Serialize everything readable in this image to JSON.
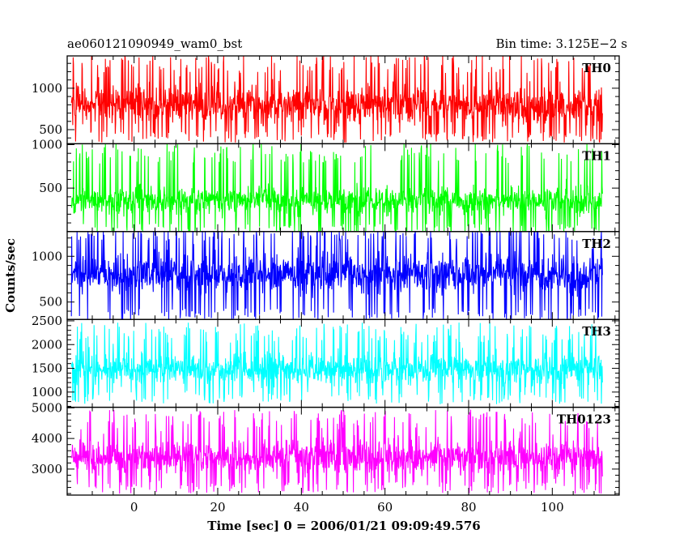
{
  "header": {
    "title": "ae060121090949_wam0_bst",
    "bin_time": "Bin time: 3.125E−2 s"
  },
  "chart_data": {
    "type": "line",
    "xlabel": "Time [sec] 0 = 2006/01/21 09:09:49.576",
    "ylabel": "Counts/sec",
    "xlim": [
      -16,
      116
    ],
    "x_range": [
      -15,
      112
    ],
    "x_ticks": [
      0,
      20,
      40,
      60,
      80,
      100
    ],
    "x_tick_labels": [
      "0",
      "20",
      "40",
      "60",
      "80",
      "100"
    ],
    "grid": false,
    "panels": [
      {
        "name": "TH0",
        "color": "#ff0000",
        "ylim": [
          330,
          1390
        ],
        "y_ticks": [
          500,
          1000
        ],
        "y_tick_labels": [
          "500",
          "1000"
        ],
        "mean": 800,
        "lower": 480,
        "upper": 1180,
        "spread": 115,
        "tail": 230
      },
      {
        "name": "TH1",
        "color": "#00ff00",
        "ylim": [
          0,
          1010
        ],
        "y_ticks": [
          500,
          1000
        ],
        "y_tick_labels": [
          "500",
          "1000"
        ],
        "mean": 360,
        "lower": 90,
        "upper": 780,
        "spread": 75,
        "tail": 240
      },
      {
        "name": "TH2",
        "color": "#0000ff",
        "ylim": [
          310,
          1270
        ],
        "y_ticks": [
          500,
          1000
        ],
        "y_tick_labels": [
          "500",
          "1000"
        ],
        "mean": 800,
        "lower": 430,
        "upper": 1170,
        "spread": 105,
        "tail": 230
      },
      {
        "name": "TH3",
        "color": "#00ffff",
        "ylim": [
          680,
          2530
        ],
        "y_ticks": [
          1000,
          1500,
          2000,
          2500
        ],
        "y_tick_labels": [
          "1000",
          "1500",
          "2000",
          "2500"
        ],
        "mean": 1480,
        "lower": 1000,
        "upper": 2040,
        "spread": 160,
        "tail": 430
      },
      {
        "name": "TH0123",
        "color": "#ff00ff",
        "ylim": [
          2150,
          5020
        ],
        "y_ticks": [
          3000,
          4000,
          5000
        ],
        "y_tick_labels": [
          "3000",
          "4000",
          "5000"
        ],
        "mean": 3380,
        "lower": 2580,
        "upper": 4300,
        "spread": 280,
        "tail": 640
      }
    ]
  }
}
